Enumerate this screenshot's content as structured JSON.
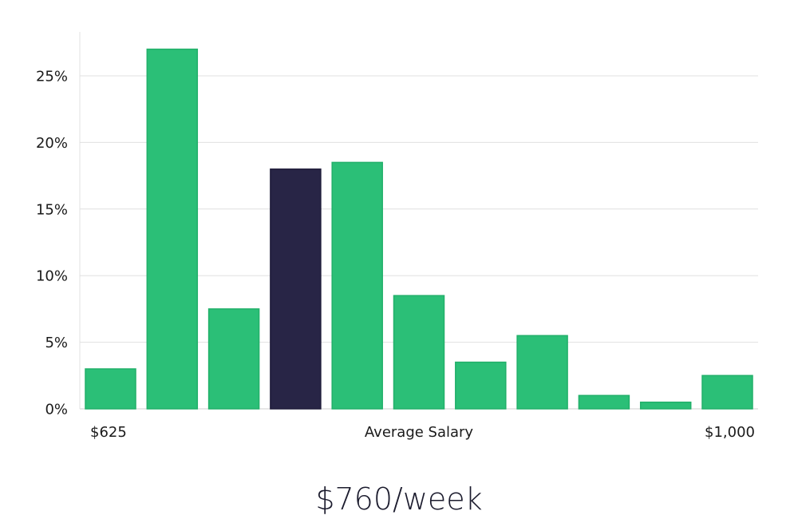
{
  "headline": "$760/week",
  "chart_data": {
    "type": "bar",
    "title": "",
    "xlabel": "Average Salary",
    "ylabel": "",
    "x_range_labels": {
      "min": "$625",
      "max": "$1,000"
    },
    "y_ticks": [
      "0%",
      "5%",
      "10%",
      "15%",
      "20%",
      "25%"
    ],
    "ylim": [
      0,
      28
    ],
    "values": [
      3.0,
      27.0,
      7.5,
      18.0,
      18.5,
      8.5,
      3.5,
      5.5,
      1.0,
      0.5,
      2.5
    ],
    "highlight_index": 3,
    "grid": true,
    "legend": "none",
    "colors": {
      "bar": "#2bbf77",
      "bar_stroke": "#22b06a",
      "highlight": "#282546",
      "grid": "#e0e0e0",
      "axis": "#cfcfcf"
    }
  }
}
